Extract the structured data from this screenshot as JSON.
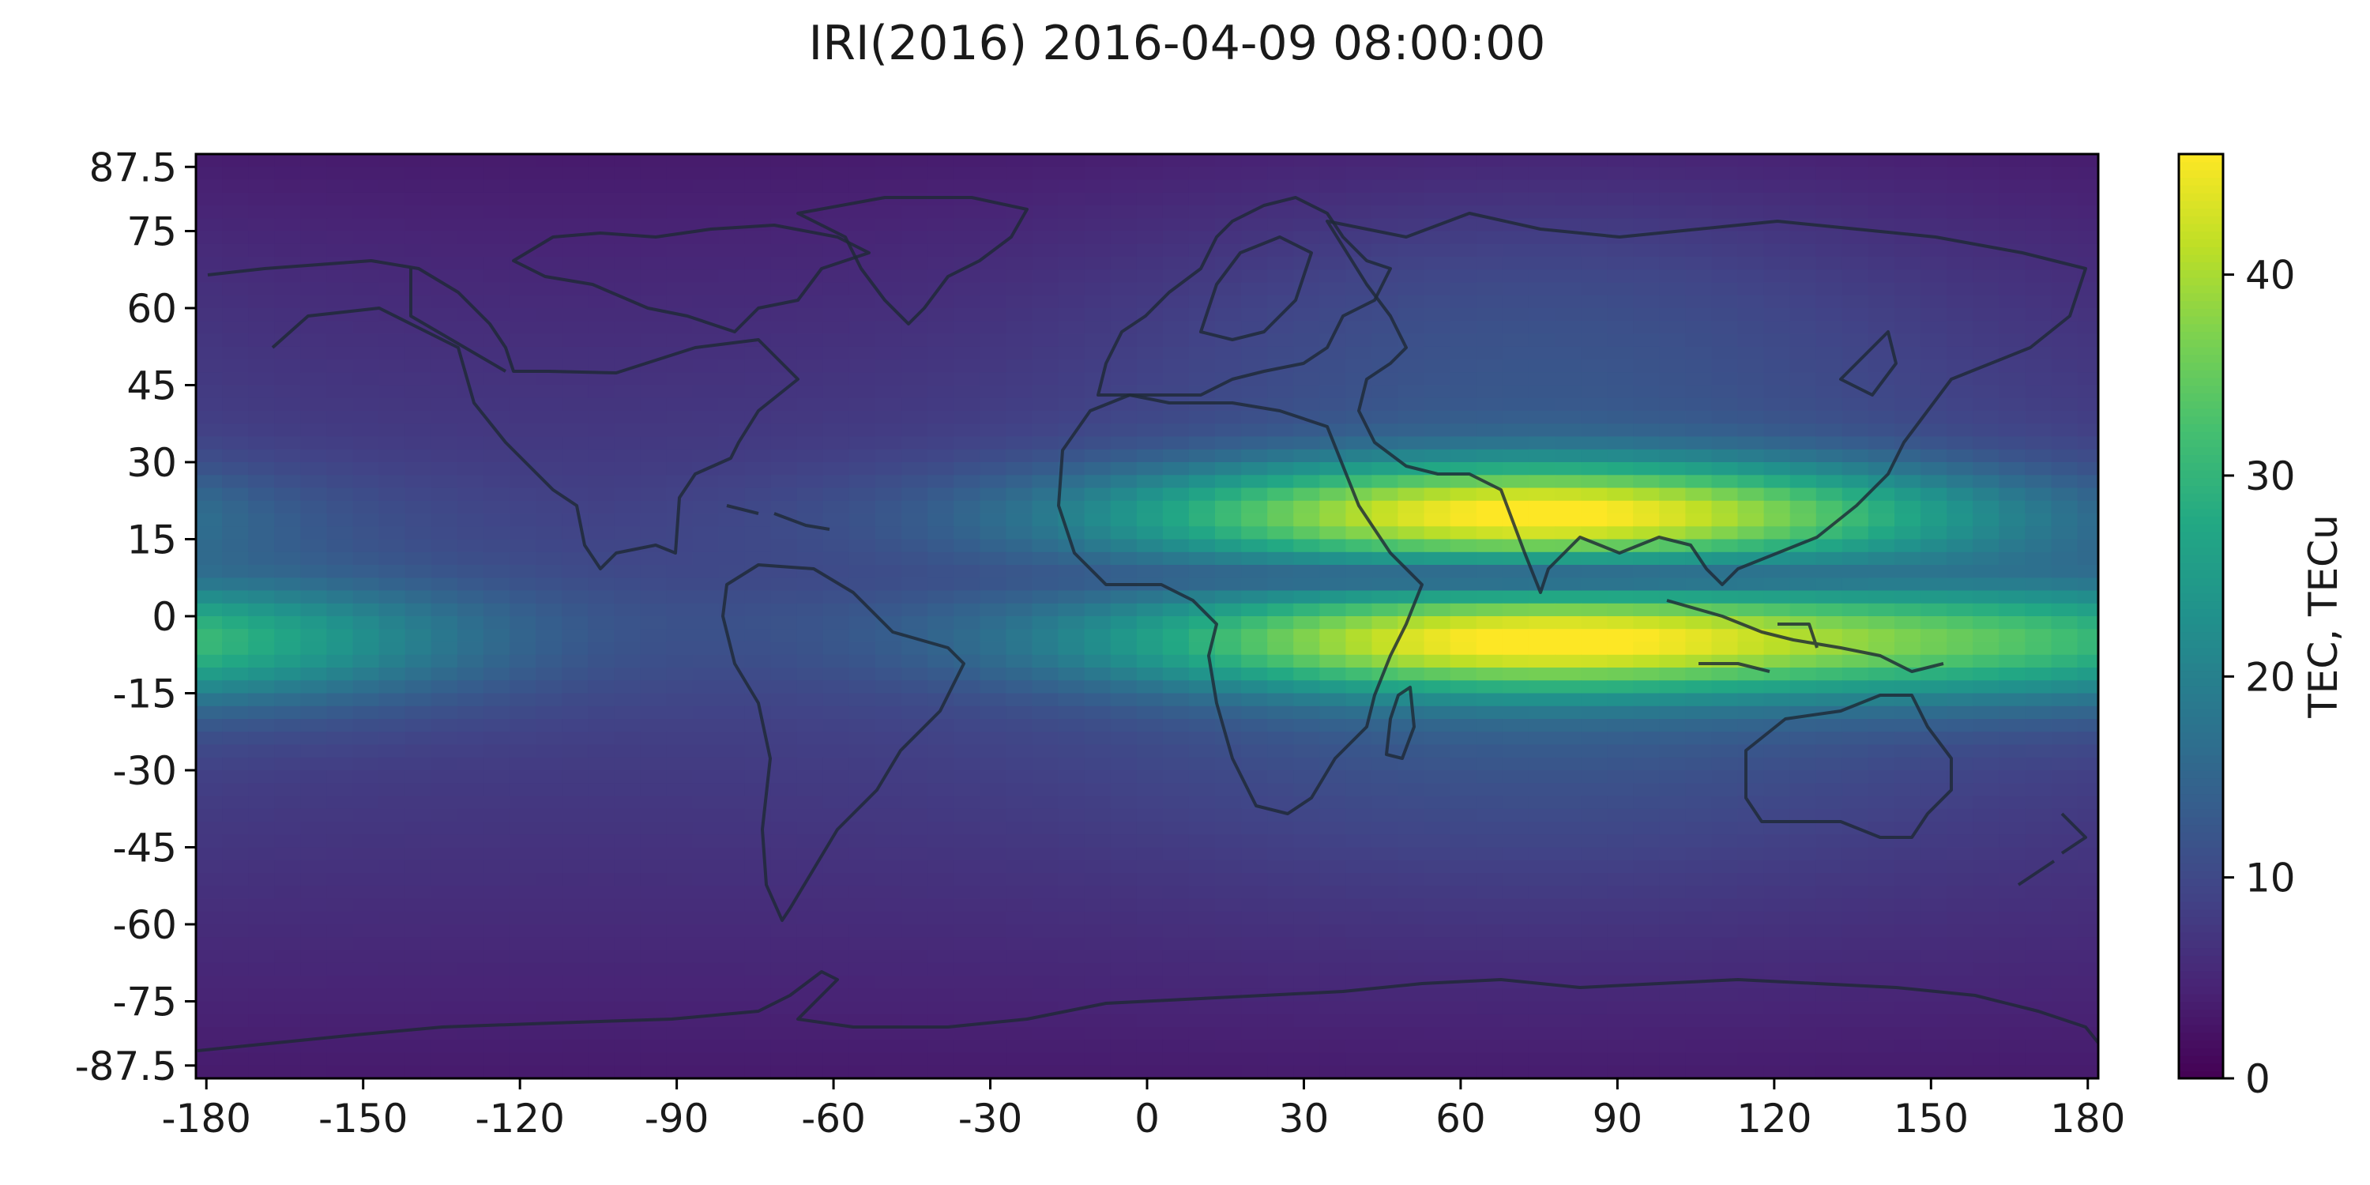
{
  "chart_data": {
    "type": "heatmap",
    "title": "IRI(2016) 2016-04-09 08:00:00",
    "xlabel": "",
    "ylabel": "",
    "xlim": [
      -182,
      182
    ],
    "ylim": [
      -90,
      90
    ],
    "xticks": [
      "-180",
      "-150",
      "-120",
      "-90",
      "-60",
      "-30",
      "0",
      "30",
      "60",
      "90",
      "120",
      "150",
      "180"
    ],
    "yticks": [
      "87.5",
      "75",
      "60",
      "45",
      "30",
      "15",
      "0",
      "-15",
      "-30",
      "-45",
      "-60",
      "-75",
      "-87.5"
    ],
    "colorbar": {
      "label": "TEC, TECu",
      "min": 0,
      "max": 46,
      "ticks": [
        "0",
        "10",
        "20",
        "30",
        "40"
      ],
      "colormap": "viridis"
    },
    "grid": false,
    "features": {
      "day_side_peak_longitude": 75,
      "northern_crest": {
        "latitude": 20,
        "peak_tec": 46,
        "longitude_range": [
          30,
          140
        ]
      },
      "southern_crest": {
        "latitude": -5,
        "peak_tec": 44,
        "longitude_range": [
          40,
          130
        ]
      },
      "night_side_minimum": {
        "longitude": -100,
        "tec": 3
      }
    }
  }
}
